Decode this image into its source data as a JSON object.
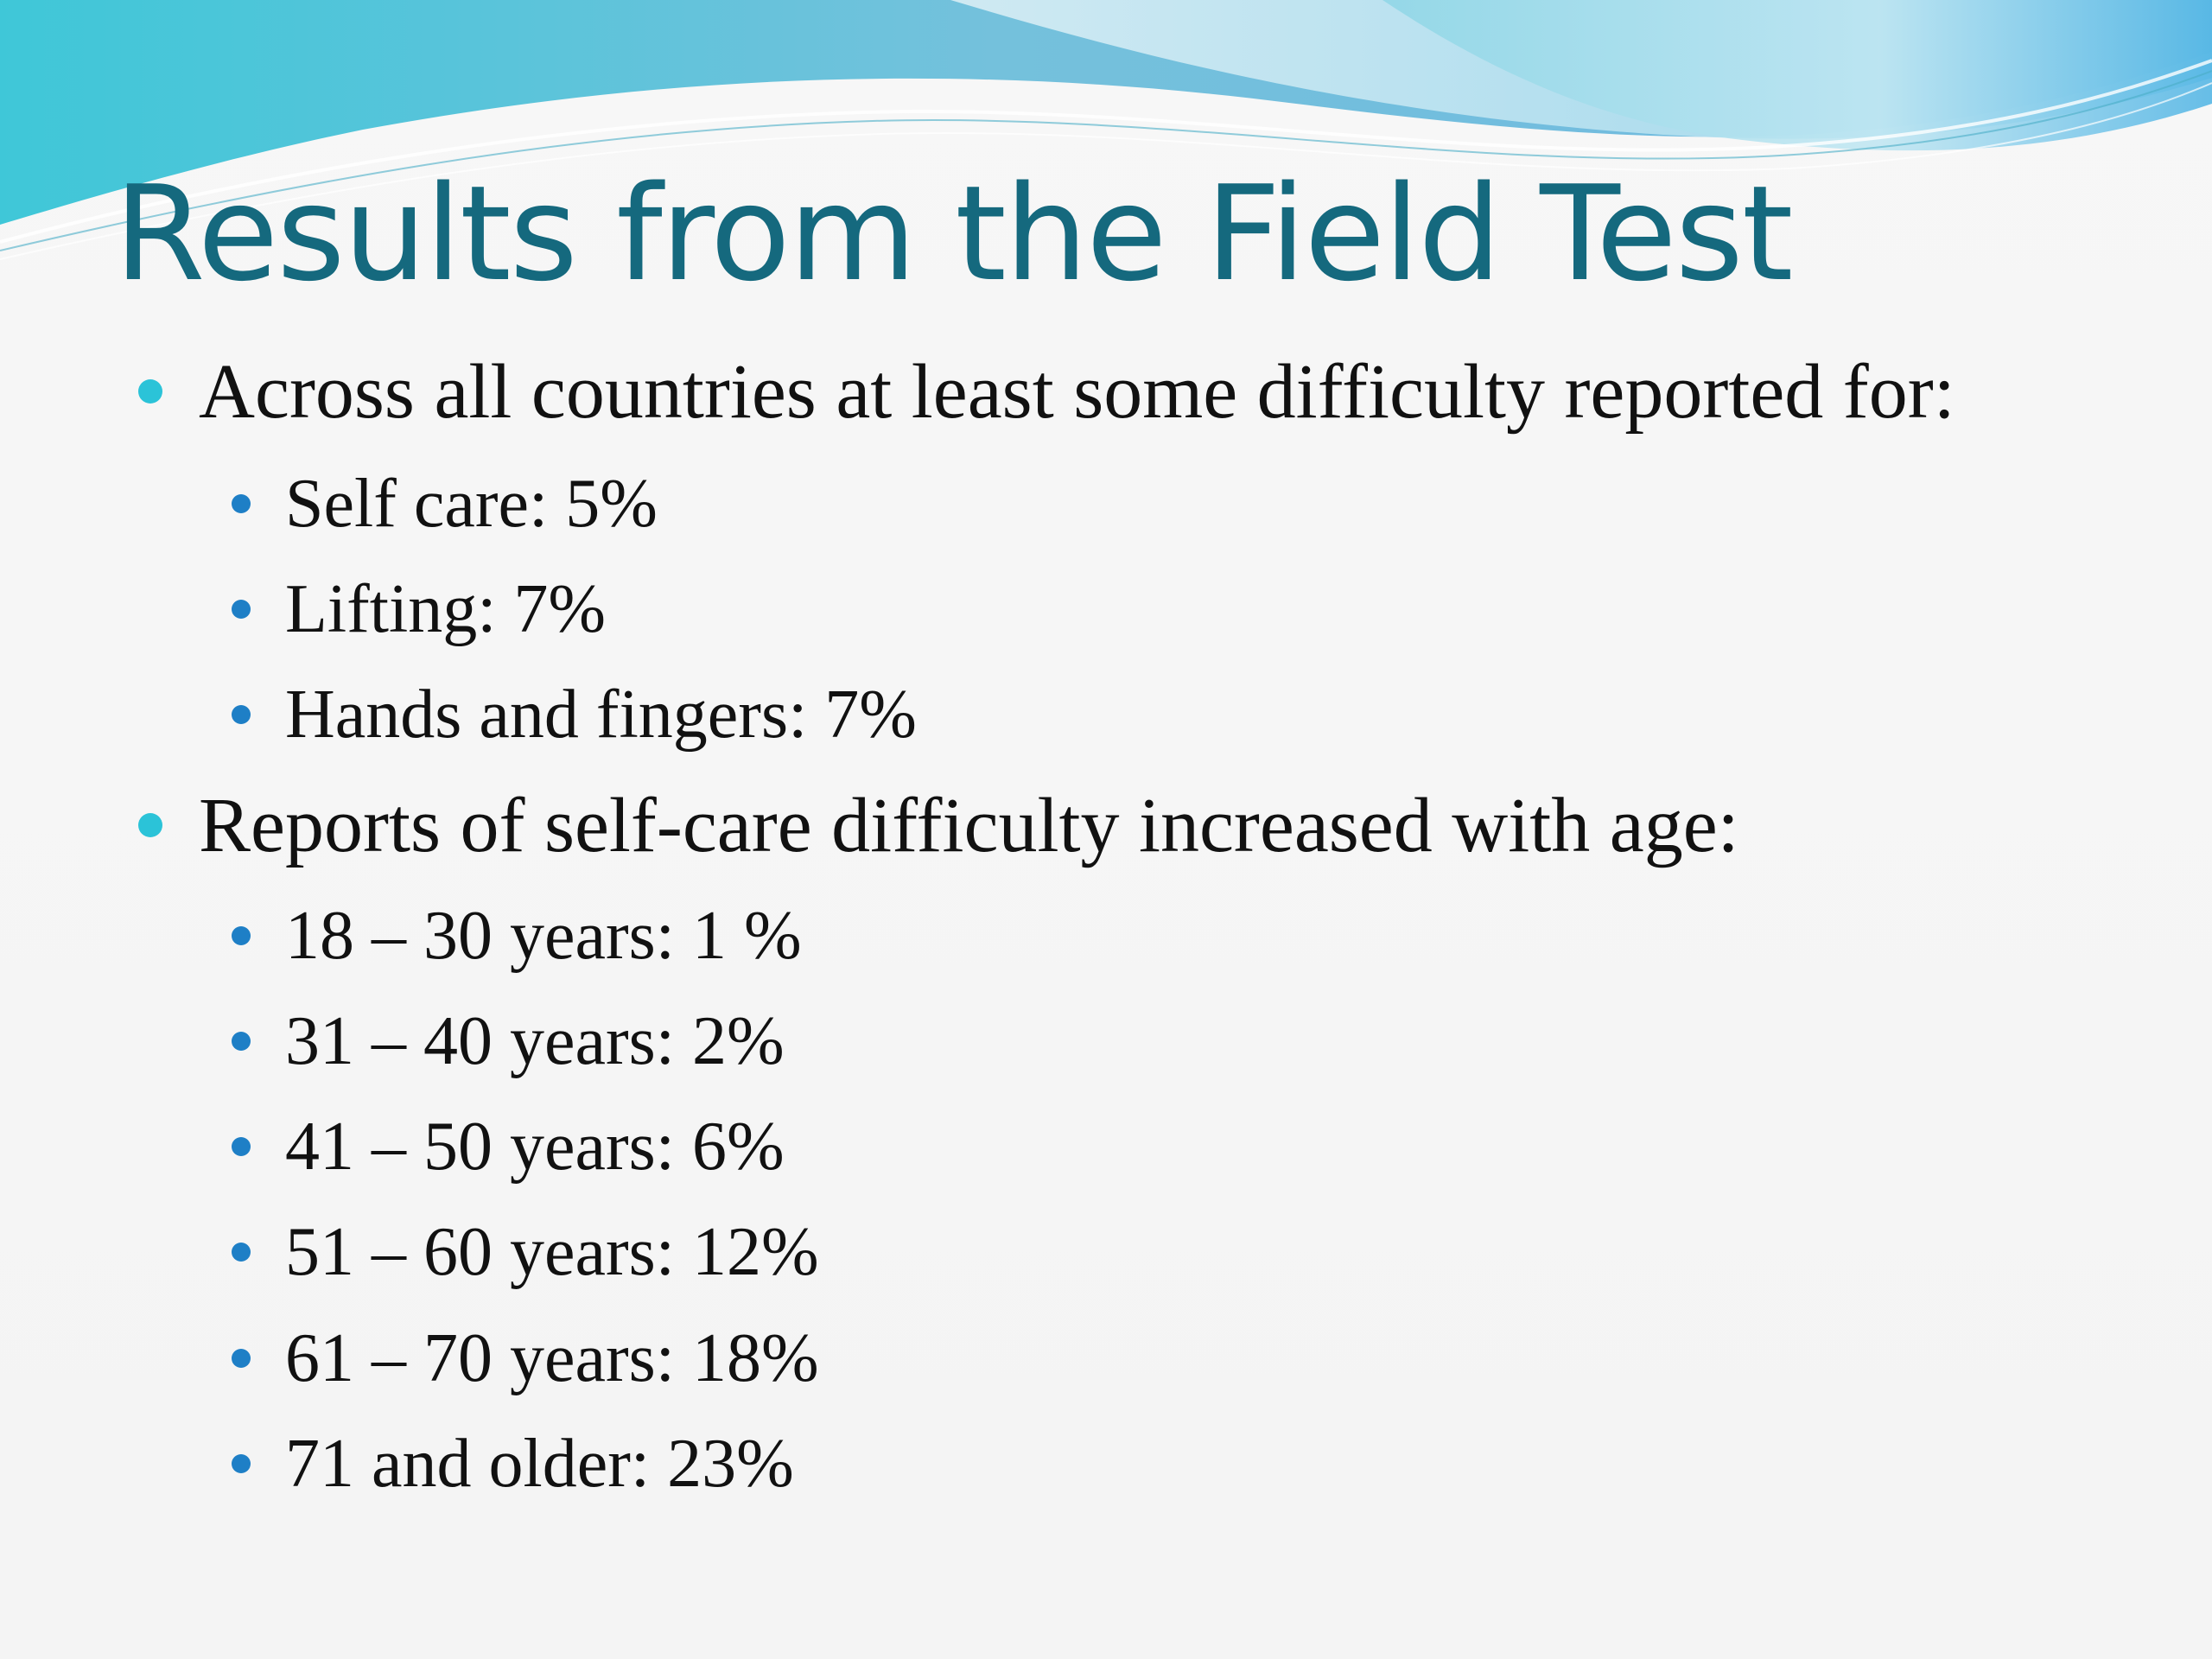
{
  "slide": {
    "title": "Results from the Field Test",
    "bullets": [
      {
        "text": "Across all countries at least some difficulty reported for:",
        "sub": [
          "Self care:  5%",
          "Lifting:  7%",
          "Hands and fingers:  7%"
        ]
      },
      {
        "text": "Reports of self-care difficulty increased with age:",
        "sub": [
          "18 – 30 years:  1 %",
          "31 – 40 years:  2%",
          "41 – 50 years:  6%",
          "51 – 60 years:  12%",
          "61 – 70 years:  18%",
          "71 and older:  23%"
        ]
      }
    ]
  },
  "colors": {
    "title": "#15697e",
    "bullet_level1": "#2bc3d8",
    "bullet_level2": "#1e7fc6",
    "body_text": "#111111",
    "background": "#f6f6f6"
  },
  "icons": {
    "level1_bullet": "round-bullet-icon",
    "level2_bullet": "round-bullet-icon"
  }
}
